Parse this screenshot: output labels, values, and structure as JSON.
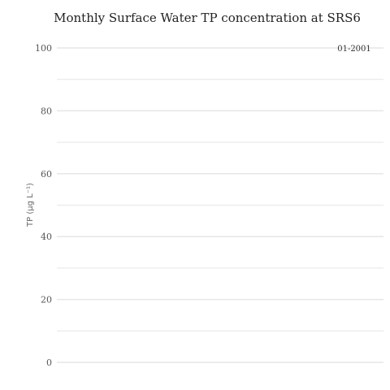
{
  "chart_data": {
    "type": "line",
    "title": "Monthly Surface Water TP concentration at SRS6",
    "ylabel": "TP (μg L⁻¹)",
    "xlabel": "",
    "ylim": [
      0,
      100
    ],
    "major_ticks": [
      0,
      20,
      40,
      60,
      80,
      100
    ],
    "minor_ticks": [
      10,
      30,
      50,
      70,
      90
    ],
    "grid": true,
    "legend": "top-right",
    "series": [
      {
        "name": "01-2001",
        "x": [],
        "y": []
      }
    ]
  },
  "colors": {
    "grid": "#e6e6e6",
    "tick_text": "#555555",
    "title_text": "#222222"
  }
}
